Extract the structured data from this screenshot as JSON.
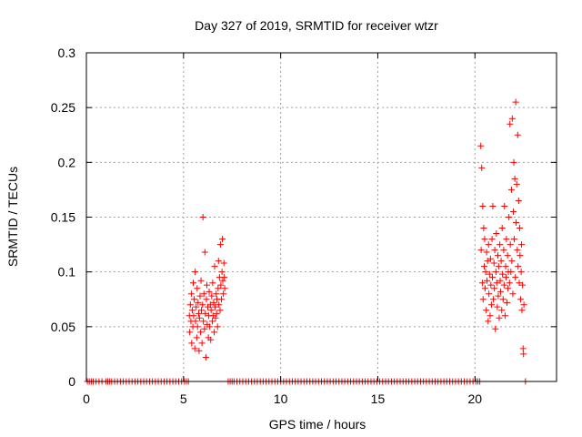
{
  "chart_data": {
    "type": "scatter",
    "title": "Day 327 of 2019, SRMTID for receiver wtzr",
    "xlabel": "GPS time / hours",
    "ylabel": "SRMTID / TECUs",
    "xlim": [
      0,
      24.2
    ],
    "ylim": [
      0,
      0.3
    ],
    "xticks": [
      0,
      5,
      10,
      15,
      20
    ],
    "xtick_labels": [
      "0",
      "5",
      "10",
      "15",
      "20"
    ],
    "yticks": [
      0,
      0.05,
      0.1,
      0.15,
      0.2,
      0.25,
      0.3
    ],
    "ytick_labels": [
      "0",
      "0.05",
      "0.1",
      "0.15",
      "0.2",
      "0.25",
      "0.3"
    ],
    "grid": true,
    "legend": "none",
    "marker": "+",
    "color": "#ff0000",
    "series": [
      {
        "points": [
          [
            0.05,
            0
          ],
          [
            0.15,
            0
          ],
          [
            0.25,
            0
          ],
          [
            0.35,
            0
          ],
          [
            0.5,
            0
          ],
          [
            0.65,
            0
          ],
          [
            0.8,
            0
          ],
          [
            1.0,
            0
          ],
          [
            1.1,
            0
          ],
          [
            1.2,
            0
          ],
          [
            1.3,
            0
          ],
          [
            1.45,
            0
          ],
          [
            1.6,
            0
          ],
          [
            1.75,
            0
          ],
          [
            1.9,
            0
          ],
          [
            2.05,
            0
          ],
          [
            2.2,
            0
          ],
          [
            2.35,
            0
          ],
          [
            2.5,
            0
          ],
          [
            2.65,
            0
          ],
          [
            2.8,
            0
          ],
          [
            2.95,
            0
          ],
          [
            3.1,
            0
          ],
          [
            3.25,
            0
          ],
          [
            3.4,
            0
          ],
          [
            3.55,
            0
          ],
          [
            3.7,
            0
          ],
          [
            3.85,
            0
          ],
          [
            4.0,
            0
          ],
          [
            4.15,
            0
          ],
          [
            4.3,
            0
          ],
          [
            4.45,
            0
          ],
          [
            4.6,
            0
          ],
          [
            4.75,
            0
          ],
          [
            4.9,
            0
          ],
          [
            5.05,
            0
          ],
          [
            5.15,
            0
          ],
          [
            5.25,
            0
          ],
          [
            5.3,
            0.06
          ],
          [
            5.32,
            0.045
          ],
          [
            5.35,
            0.07
          ],
          [
            5.38,
            0.055
          ],
          [
            5.4,
            0.08
          ],
          [
            5.42,
            0.035
          ],
          [
            5.45,
            0.065
          ],
          [
            5.48,
            0.05
          ],
          [
            5.5,
            0.09
          ],
          [
            5.52,
            0.06
          ],
          [
            5.55,
            0.075
          ],
          [
            5.58,
            0.03
          ],
          [
            5.6,
            0.1
          ],
          [
            5.62,
            0.055
          ],
          [
            5.65,
            0.068
          ],
          [
            5.68,
            0.04
          ],
          [
            5.7,
            0.085
          ],
          [
            5.72,
            0.05
          ],
          [
            5.75,
            0.072
          ],
          [
            5.78,
            0.062
          ],
          [
            5.8,
            0.028
          ],
          [
            5.82,
            0.058
          ],
          [
            5.85,
            0.078
          ],
          [
            5.88,
            0.045
          ],
          [
            5.9,
            0.092
          ],
          [
            5.92,
            0.065
          ],
          [
            5.95,
            0.035
          ],
          [
            5.98,
            0.07
          ],
          [
            6.0,
            0.15
          ],
          [
            6.02,
            0.055
          ],
          [
            6.05,
            0.08
          ],
          [
            6.08,
            0.048
          ],
          [
            6.1,
            0.118
          ],
          [
            6.12,
            0.062
          ],
          [
            6.15,
            0.022
          ],
          [
            6.18,
            0.075
          ],
          [
            6.2,
            0.088
          ],
          [
            6.22,
            0.052
          ],
          [
            6.25,
            0.068
          ],
          [
            6.28,
            0.04
          ],
          [
            6.3,
            0.06
          ],
          [
            6.32,
            0.082
          ],
          [
            6.35,
            0.05
          ],
          [
            6.38,
            0.07
          ],
          [
            6.4,
            0.038
          ],
          [
            6.42,
            0.065
          ],
          [
            6.45,
            0.078
          ],
          [
            6.48,
            0.055
          ],
          [
            6.5,
            0.09
          ],
          [
            6.52,
            0.06
          ],
          [
            6.55,
            0.072
          ],
          [
            6.58,
            0.045
          ],
          [
            6.6,
            0.105
          ],
          [
            6.62,
            0.068
          ],
          [
            6.65,
            0.058
          ],
          [
            6.68,
            0.08
          ],
          [
            6.7,
            0.062
          ],
          [
            6.72,
            0.075
          ],
          [
            6.75,
            0.05
          ],
          [
            6.78,
            0.085
          ],
          [
            6.8,
            0.11
          ],
          [
            6.82,
            0.07
          ],
          [
            6.85,
            0.095
          ],
          [
            6.88,
            0.065
          ],
          [
            6.9,
            0.125
          ],
          [
            6.92,
            0.088
          ],
          [
            6.95,
            0.075
          ],
          [
            6.98,
            0.1
          ],
          [
            7.0,
            0.13
          ],
          [
            7.02,
            0.092
          ],
          [
            7.05,
            0.08
          ],
          [
            7.08,
            0.108
          ],
          [
            7.1,
            0.095
          ],
          [
            7.12,
            0.085
          ],
          [
            7.3,
            0
          ],
          [
            7.4,
            0
          ],
          [
            7.5,
            0
          ],
          [
            7.6,
            0
          ],
          [
            7.75,
            0
          ],
          [
            7.9,
            0
          ],
          [
            8.05,
            0
          ],
          [
            8.2,
            0
          ],
          [
            8.35,
            0
          ],
          [
            8.5,
            0
          ],
          [
            8.65,
            0
          ],
          [
            8.8,
            0
          ],
          [
            8.95,
            0
          ],
          [
            9.1,
            0
          ],
          [
            9.25,
            0
          ],
          [
            9.4,
            0
          ],
          [
            9.55,
            0
          ],
          [
            9.7,
            0
          ],
          [
            9.85,
            0
          ],
          [
            10.0,
            0
          ],
          [
            10.15,
            0
          ],
          [
            10.3,
            0
          ],
          [
            10.45,
            0
          ],
          [
            10.6,
            0
          ],
          [
            10.75,
            0
          ],
          [
            10.9,
            0
          ],
          [
            11.05,
            0
          ],
          [
            11.2,
            0
          ],
          [
            11.35,
            0
          ],
          [
            11.5,
            0
          ],
          [
            11.65,
            0
          ],
          [
            11.8,
            0
          ],
          [
            11.95,
            0
          ],
          [
            12.1,
            0
          ],
          [
            12.25,
            0
          ],
          [
            12.4,
            0
          ],
          [
            12.55,
            0
          ],
          [
            12.7,
            0
          ],
          [
            12.85,
            0
          ],
          [
            13.0,
            0
          ],
          [
            13.15,
            0
          ],
          [
            13.3,
            0
          ],
          [
            13.45,
            0
          ],
          [
            13.6,
            0
          ],
          [
            13.75,
            0
          ],
          [
            13.9,
            0
          ],
          [
            14.05,
            0
          ],
          [
            14.2,
            0
          ],
          [
            14.35,
            0
          ],
          [
            14.5,
            0
          ],
          [
            14.65,
            0
          ],
          [
            14.8,
            0
          ],
          [
            14.95,
            0
          ],
          [
            15.1,
            0
          ],
          [
            15.25,
            0
          ],
          [
            15.4,
            0
          ],
          [
            15.55,
            0
          ],
          [
            15.7,
            0
          ],
          [
            15.85,
            0
          ],
          [
            16.0,
            0
          ],
          [
            16.15,
            0
          ],
          [
            16.3,
            0
          ],
          [
            16.45,
            0
          ],
          [
            16.6,
            0
          ],
          [
            16.75,
            0
          ],
          [
            16.9,
            0
          ],
          [
            17.05,
            0
          ],
          [
            17.2,
            0
          ],
          [
            17.35,
            0
          ],
          [
            17.5,
            0
          ],
          [
            17.65,
            0
          ],
          [
            17.8,
            0
          ],
          [
            17.95,
            0
          ],
          [
            18.1,
            0
          ],
          [
            18.25,
            0
          ],
          [
            18.4,
            0
          ],
          [
            18.55,
            0
          ],
          [
            18.7,
            0
          ],
          [
            18.85,
            0
          ],
          [
            19.0,
            0
          ],
          [
            19.15,
            0
          ],
          [
            19.3,
            0
          ],
          [
            19.45,
            0
          ],
          [
            19.6,
            0
          ],
          [
            19.75,
            0
          ],
          [
            19.9,
            0
          ],
          [
            20.05,
            0
          ],
          [
            20.15,
            0
          ],
          [
            20.25,
            0
          ],
          [
            20.3,
            0.215
          ],
          [
            20.32,
            0.12
          ],
          [
            20.35,
            0.195
          ],
          [
            20.38,
            0.09
          ],
          [
            20.4,
            0.16
          ],
          [
            20.42,
            0.075
          ],
          [
            20.45,
            0.14
          ],
          [
            20.48,
            0.105
          ],
          [
            20.5,
            0.13
          ],
          [
            20.52,
            0.085
          ],
          [
            20.55,
            0.1
          ],
          [
            20.58,
            0.065
          ],
          [
            20.6,
            0.118
          ],
          [
            20.62,
            0.092
          ],
          [
            20.65,
            0.11
          ],
          [
            20.68,
            0.055
          ],
          [
            20.7,
            0.125
          ],
          [
            20.72,
            0.08
          ],
          [
            20.75,
            0.098
          ],
          [
            20.78,
            0.06
          ],
          [
            20.8,
            0.112
          ],
          [
            20.82,
            0.088
          ],
          [
            20.85,
            0.07
          ],
          [
            20.88,
            0.13
          ],
          [
            20.9,
            0.095
          ],
          [
            20.92,
            0.16
          ],
          [
            20.95,
            0.075
          ],
          [
            20.98,
            0.108
          ],
          [
            21.0,
            0.085
          ],
          [
            21.02,
            0.12
          ],
          [
            21.05,
            0.048
          ],
          [
            21.08,
            0.1
          ],
          [
            21.1,
            0.135
          ],
          [
            21.12,
            0.09
          ],
          [
            21.15,
            0.068
          ],
          [
            21.18,
            0.115
          ],
          [
            21.2,
            0.078
          ],
          [
            21.22,
            0.105
          ],
          [
            21.25,
            0.058
          ],
          [
            21.28,
            0.125
          ],
          [
            21.3,
            0.092
          ],
          [
            21.32,
            0.082
          ],
          [
            21.35,
            0.11
          ],
          [
            21.38,
            0.065
          ],
          [
            21.4,
            0.14
          ],
          [
            21.42,
            0.098
          ],
          [
            21.45,
            0.075
          ],
          [
            21.48,
            0.12
          ],
          [
            21.5,
            0.088
          ],
          [
            21.52,
            0.16
          ],
          [
            21.55,
            0.06
          ],
          [
            21.58,
            0.105
          ],
          [
            21.6,
            0.095
          ],
          [
            21.62,
            0.13
          ],
          [
            21.65,
            0.072
          ],
          [
            21.68,
            0.115
          ],
          [
            21.7,
            0.085
          ],
          [
            21.72,
            0.1
          ],
          [
            21.75,
            0.15
          ],
          [
            21.78,
            0.09
          ],
          [
            21.8,
            0.235
          ],
          [
            21.82,
            0.125
          ],
          [
            21.85,
            0.1
          ],
          [
            21.88,
            0.175
          ],
          [
            21.9,
            0.11
          ],
          [
            21.92,
            0.24
          ],
          [
            21.95,
            0.08
          ],
          [
            21.98,
            0.155
          ],
          [
            22.0,
            0.2
          ],
          [
            22.02,
            0.13
          ],
          [
            22.05,
            0.185
          ],
          [
            22.08,
            0.095
          ],
          [
            22.1,
            0.255
          ],
          [
            22.12,
            0.145
          ],
          [
            22.15,
            0.18
          ],
          [
            22.18,
            0.12
          ],
          [
            22.2,
            0.225
          ],
          [
            22.22,
            0.105
          ],
          [
            22.25,
            0.165
          ],
          [
            22.28,
            0.09
          ],
          [
            22.3,
            0.14
          ],
          [
            22.32,
            0.115
          ],
          [
            22.35,
            0.075
          ],
          [
            22.38,
            0.1
          ],
          [
            22.4,
            0.125
          ],
          [
            22.42,
            0.065
          ],
          [
            22.45,
            0.088
          ],
          [
            22.48,
            0.03
          ],
          [
            22.5,
            0.025
          ],
          [
            22.52,
            0.07
          ],
          [
            22.6,
            0
          ]
        ]
      }
    ]
  }
}
